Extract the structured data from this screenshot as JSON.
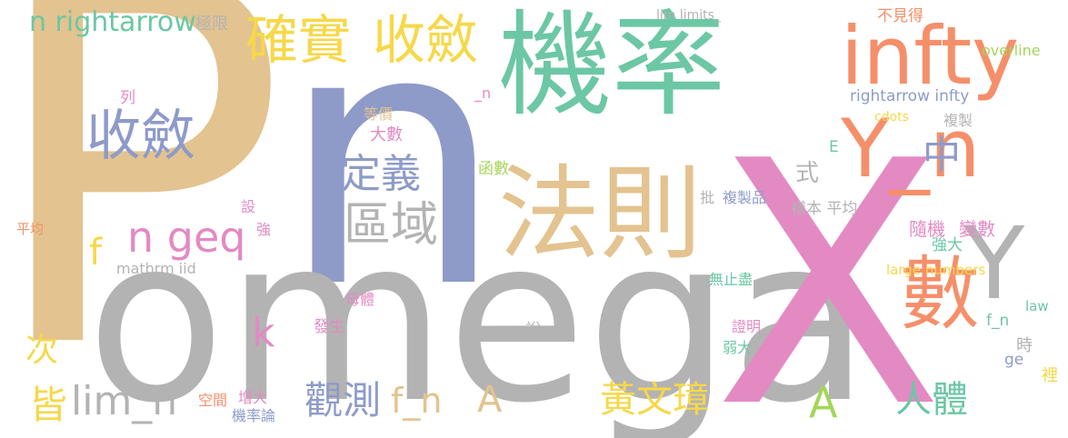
{
  "colors": {
    "tan": "#e3c38f",
    "blue": "#8e9bc9",
    "teal": "#6cc7a4",
    "gray": "#b3b3b3",
    "pink": "#e38ac3",
    "orange": "#f58f6a",
    "yellow": "#f6d84a",
    "green": "#a5d55a"
  },
  "words": [
    "P",
    "n",
    "omega",
    "X",
    "機率",
    "法則",
    "infty",
    "Y_n",
    "數",
    "Y",
    "中",
    "確實",
    "收斂",
    "收斂",
    "區域",
    "定義",
    "n geq",
    "n rightarrow",
    "lim_n",
    "皆",
    "次",
    "觀測",
    "f_n",
    "A",
    "A",
    "黃文璋",
    "人體",
    "k",
    "f",
    "mathrm iid",
    "rightarrow infty",
    "極限",
    "lim limits_",
    "不見得",
    "overline",
    "cdots",
    "複製",
    "隨機",
    "變數",
    "批",
    "複製品",
    "樣本 平均",
    "強大",
    "large numbers",
    "law",
    "f_n",
    "ge",
    "時",
    "無止盡",
    "證明",
    "弱大",
    "母體",
    "發生",
    "增大",
    "機率論",
    "空間",
    "說",
    "大數",
    "等價",
    "列",
    "平均",
    "式",
    "函數",
    "設",
    "強",
    "_n",
    "E",
    "裡"
  ]
}
